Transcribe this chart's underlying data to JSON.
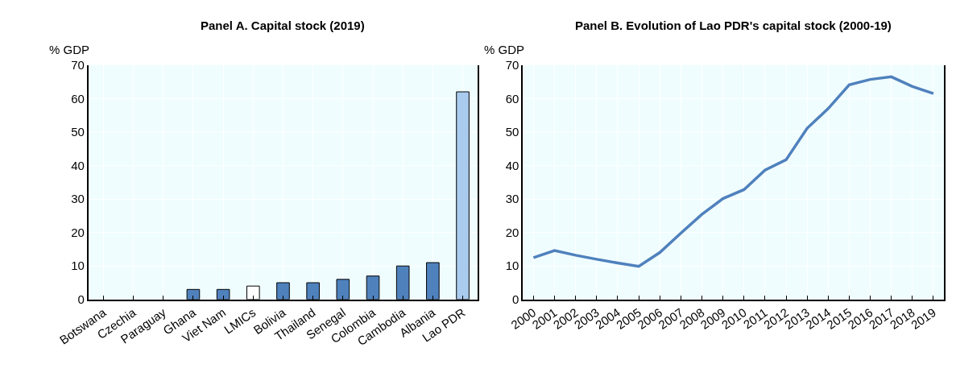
{
  "chart_data": [
    {
      "type": "bar",
      "title": "Panel A. Capital stock (2019)",
      "ylabel": "% GDP",
      "categories": [
        "Botswana",
        "Czechia",
        "Paraguay",
        "Ghana",
        "Viet Nam",
        "LMICs",
        "Bolivia",
        "Thailand",
        "Senegal",
        "Colombia",
        "Cambodia",
        "Albania",
        "Lao PDR"
      ],
      "values": [
        null,
        null,
        null,
        3,
        3,
        4,
        5,
        5,
        6,
        7,
        10,
        11,
        62
      ],
      "colors": [
        "#4f81bd",
        "#4f81bd",
        "#4f81bd",
        "#4f81bd",
        "#4f81bd",
        "#ffffff",
        "#4f81bd",
        "#4f81bd",
        "#4f81bd",
        "#4f81bd",
        "#4f81bd",
        "#4f81bd",
        "#a9cbee"
      ],
      "ylim": [
        0,
        70
      ],
      "yticks": [
        0,
        10,
        20,
        30,
        40,
        50,
        60,
        70
      ],
      "grid": true
    },
    {
      "type": "line",
      "title": "Panel B. Evolution of Lao PDR's capital stock (2000-19)",
      "ylabel": "% GDP",
      "categories": [
        "2000",
        "2001",
        "2002",
        "2003",
        "2004",
        "2005",
        "2006",
        "2007",
        "2008",
        "2009",
        "2010",
        "2011",
        "2012",
        "2013",
        "2014",
        "2015",
        "2016",
        "2017",
        "2018",
        "2019"
      ],
      "series": [
        {
          "color": "#4f81bd",
          "values": [
            12.5,
            14.6,
            13.2,
            12.0,
            10.9,
            9.9,
            14.0,
            19.8,
            25.4,
            30.1,
            32.8,
            38.6,
            41.7,
            51.1,
            57.0,
            64.1,
            65.7,
            66.5,
            63.6,
            61.5
          ]
        }
      ],
      "ylim": [
        0,
        70
      ],
      "yticks": [
        0,
        10,
        20,
        30,
        40,
        50,
        60,
        70
      ],
      "grid": true,
      "marker": "none",
      "line_style": "solid"
    }
  ]
}
